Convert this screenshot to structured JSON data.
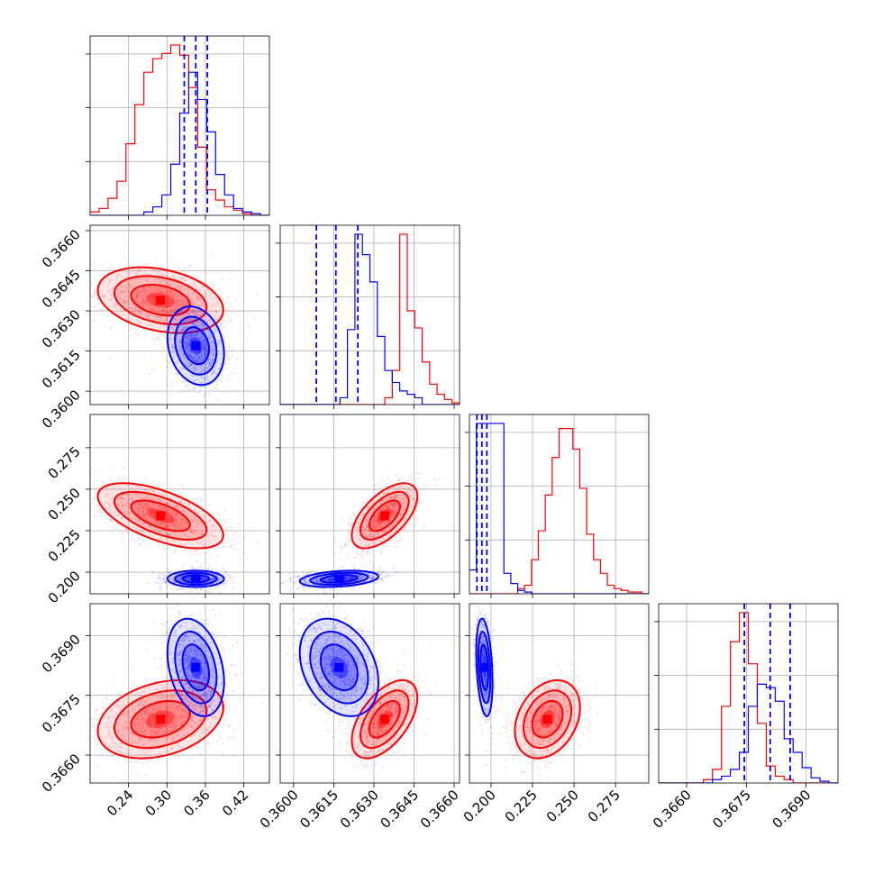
{
  "chart_data": {
    "type": "corner",
    "title": "",
    "parameters": [
      {
        "range": [
          0.18,
          0.46
        ],
        "ticks": [
          0.24,
          0.3,
          0.36,
          0.42
        ],
        "tick_labels": [
          "0.24",
          "0.30",
          "0.36",
          "0.42"
        ]
      },
      {
        "range": [
          0.3595,
          0.3662
        ],
        "ticks": [
          0.36,
          0.3615,
          0.363,
          0.3645,
          0.366
        ],
        "tick_labels": [
          "0.3600",
          "0.3615",
          "0.3630",
          "0.3645",
          "0.3660"
        ]
      },
      {
        "range": [
          0.187,
          0.295
        ],
        "ticks": [
          0.2,
          0.225,
          0.25,
          0.275
        ],
        "tick_labels": [
          "0.200",
          "0.225",
          "0.250",
          "0.275"
        ]
      },
      {
        "range": [
          0.3653,
          0.3698
        ],
        "ticks": [
          0.366,
          0.3675,
          0.369
        ],
        "tick_labels": [
          "0.3660",
          "0.3675",
          "0.3690"
        ]
      }
    ],
    "series": [
      {
        "color": "#ff0000",
        "means": [
          0.29,
          0.3634,
          0.234,
          0.3669
        ],
        "sds": [
          0.04,
          0.0005,
          0.008,
          0.0004
        ],
        "correlations": {
          "1-0": -0.3,
          "2-0": -0.6,
          "2-1": 0.6,
          "3-0": 0.3,
          "3-1": 0.55,
          "3-2": 0.3
        },
        "histograms": [
          [
            2,
            4,
            10,
            20,
            42,
            65,
            84,
            92,
            95,
            100,
            94,
            75,
            40,
            15,
            9,
            5,
            3,
            1,
            0,
            0
          ],
          [
            0,
            0,
            0,
            0,
            0,
            0,
            0,
            0,
            0,
            0,
            0,
            0,
            0,
            0,
            4,
            20,
            100,
            55,
            45,
            25,
            12,
            6,
            3,
            1
          ],
          [
            0,
            0,
            0,
            0,
            0,
            0,
            0,
            3,
            5,
            20,
            37,
            58,
            80,
            97,
            97,
            85,
            62,
            35,
            20,
            12,
            5,
            3,
            2,
            1,
            1,
            0
          ],
          [
            0,
            0,
            0,
            0,
            0,
            2,
            8,
            45,
            83,
            100,
            70,
            35,
            10,
            4,
            2,
            0,
            0,
            0,
            0,
            0
          ]
        ]
      },
      {
        "color": "#0000ff",
        "means": [
          0.345,
          0.3617,
          0.196,
          0.3682
        ],
        "sds": [
          0.018,
          0.0006,
          0.002,
          0.0005
        ],
        "correlations": {
          "1-0": -0.2,
          "2-0": 0.0,
          "2-1": 0.3,
          "3-0": -0.3,
          "3-1": -0.3,
          "3-2": -0.3
        },
        "histograms": [
          [
            0,
            0,
            0,
            0,
            0,
            0,
            2,
            5,
            12,
            30,
            60,
            84,
            68,
            49,
            24,
            12,
            4,
            2,
            1,
            0
          ],
          [
            0,
            0,
            0,
            0,
            0,
            0,
            0,
            0,
            4,
            44,
            100,
            88,
            72,
            40,
            20,
            13,
            8,
            6,
            4,
            0,
            0,
            0,
            0,
            0
          ],
          [
            14,
            100,
            100,
            100,
            100,
            12,
            6,
            2,
            1,
            0,
            0,
            0,
            0,
            0,
            0,
            0,
            0,
            0,
            0,
            0,
            0,
            0,
            0,
            0,
            0,
            0
          ],
          [
            0,
            0,
            0,
            0,
            0,
            0,
            2,
            4,
            8,
            18,
            45,
            58,
            56,
            48,
            26,
            18,
            9,
            3,
            1,
            0
          ]
        ]
      }
    ],
    "quantile_lines": {
      "color": "#0000ff",
      "values": [
        [
          0.327,
          0.345,
          0.363
        ],
        [
          0.36085,
          0.36158,
          0.3624
        ],
        [
          0.1915,
          0.1945,
          0.1975
        ],
        [
          0.36745,
          0.3681,
          0.3686
        ]
      ]
    },
    "grid": true,
    "legend": "none"
  }
}
